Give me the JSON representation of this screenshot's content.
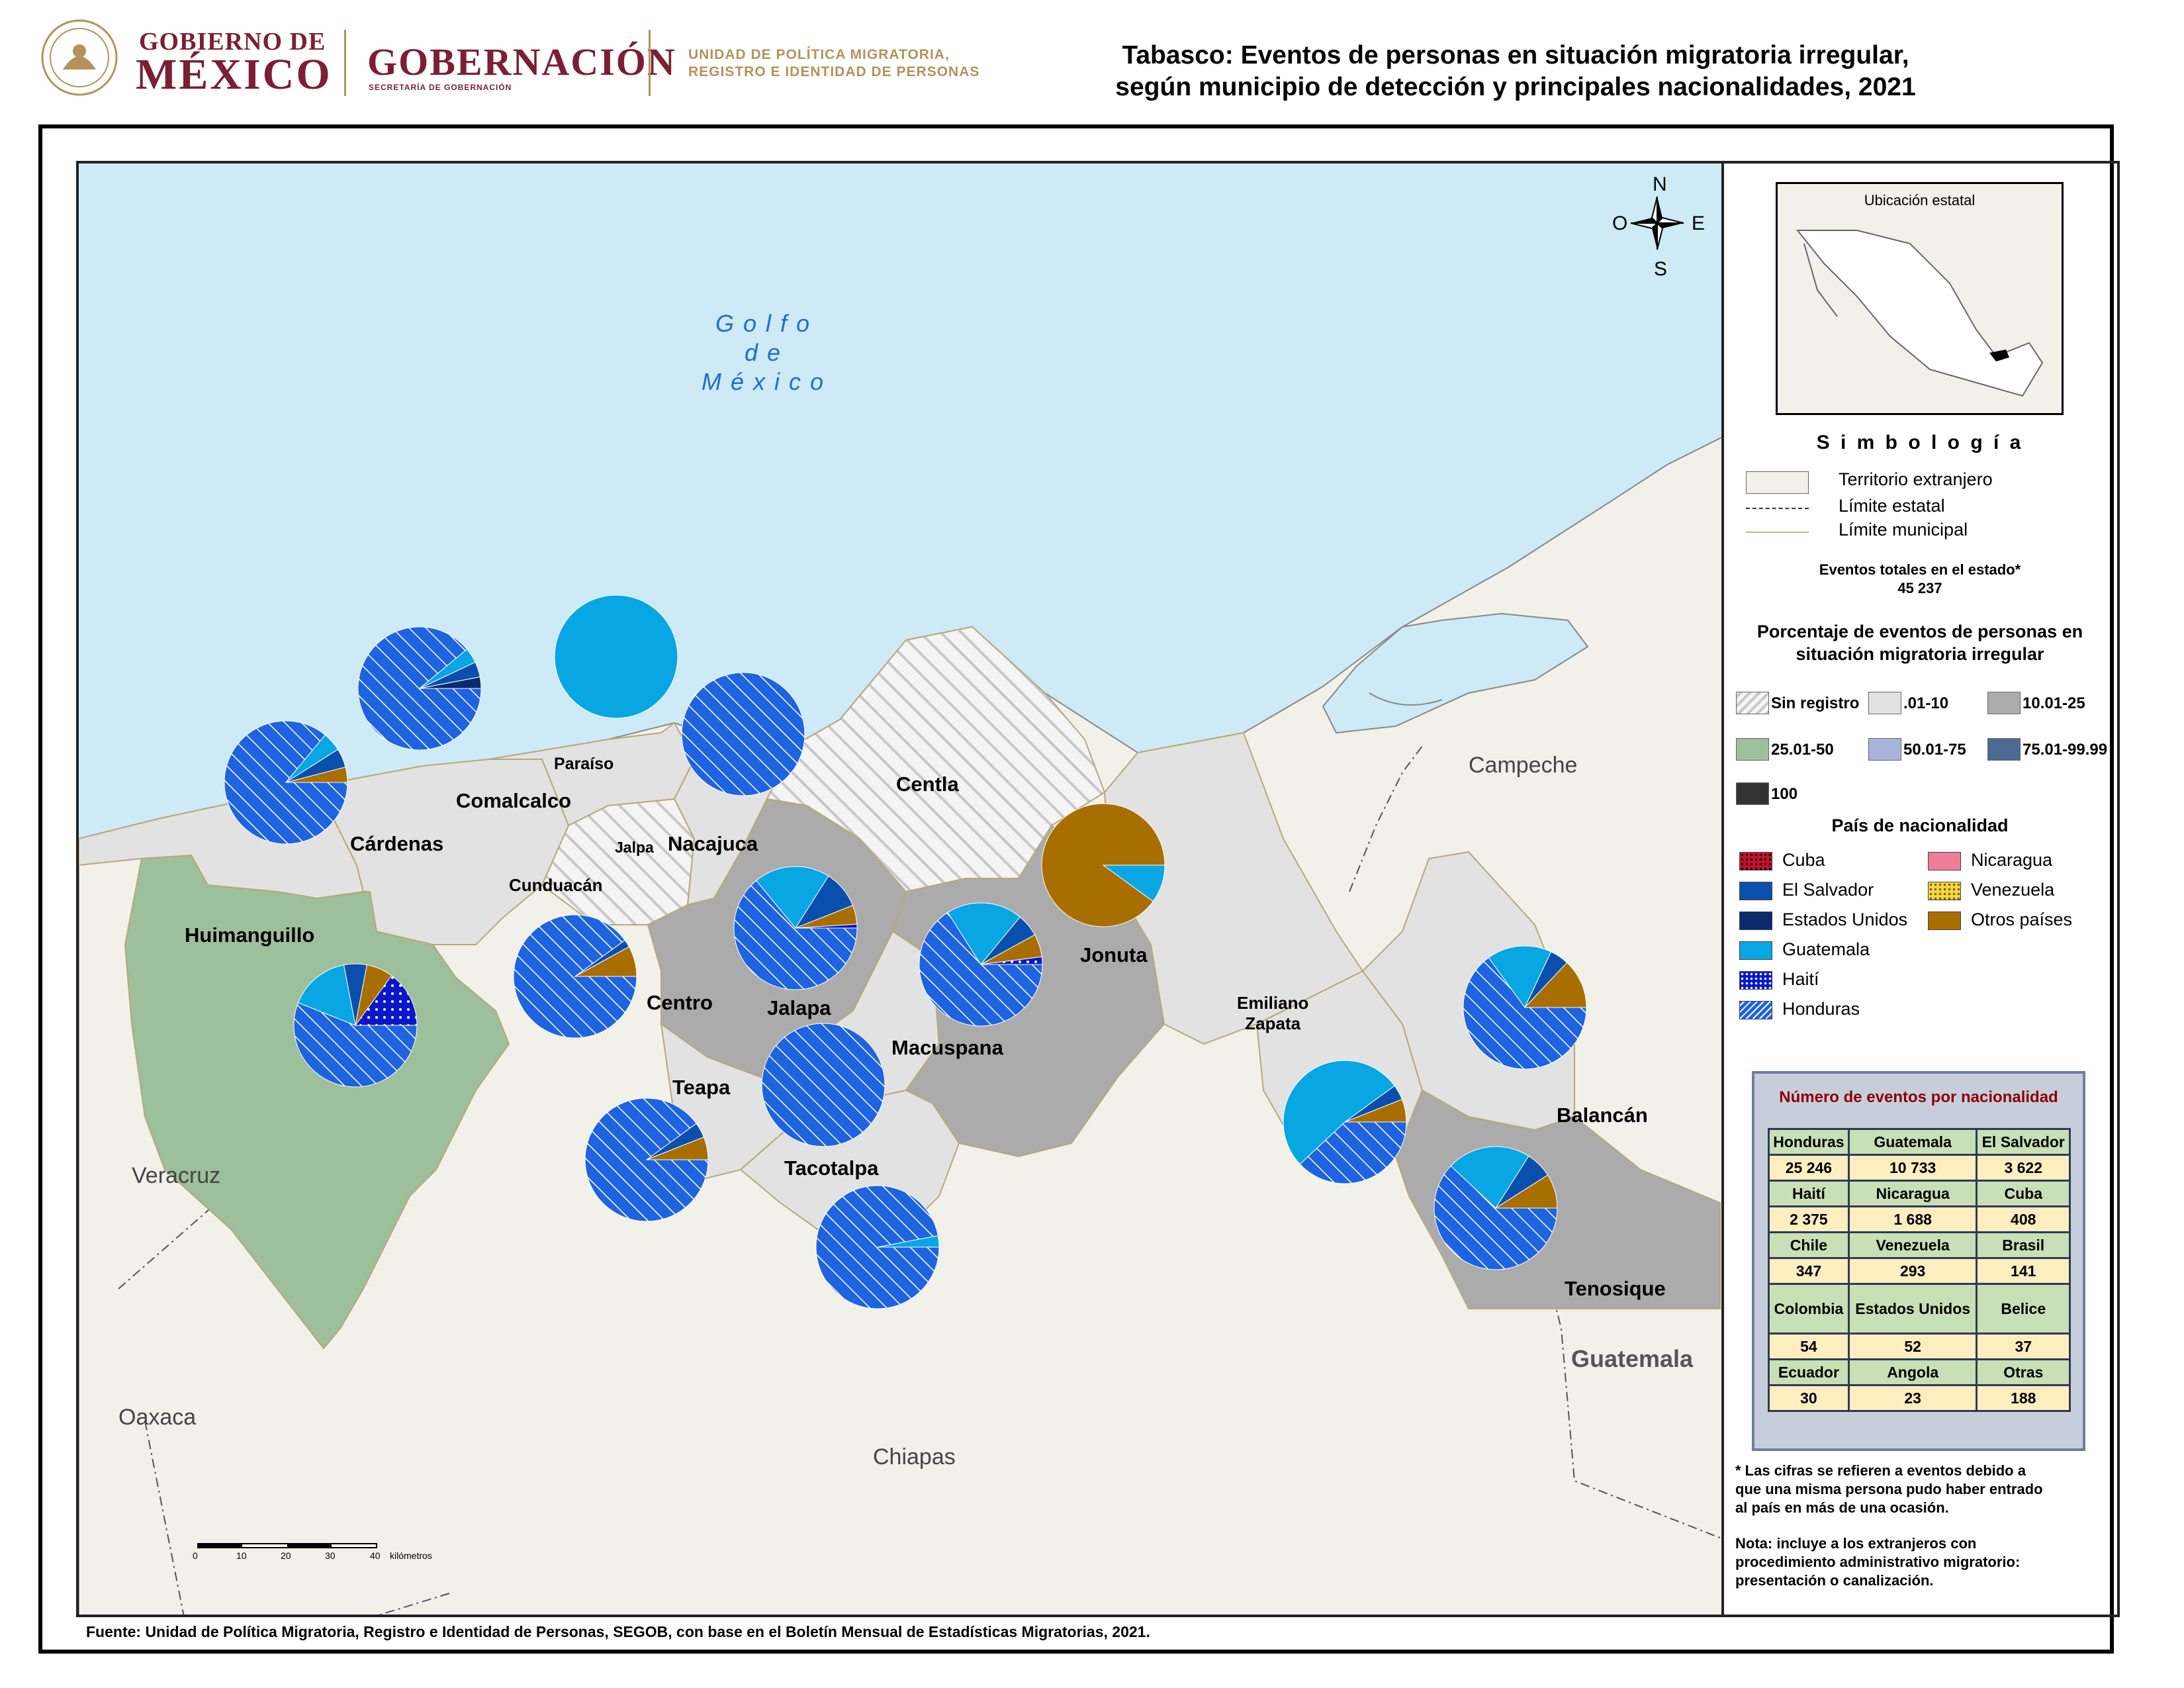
{
  "header": {
    "gov_top": "GOBIERNO DE",
    "gov_main": "MÉXICO",
    "gob_main": "GOBERNACIÓN",
    "gob_sub": "SECRETARÍA DE GOBERNACIÓN",
    "upm_line1": "UNIDAD DE POLÍTICA MIGRATORIA,",
    "upm_line2": "REGISTRO E IDENTIDAD DE PERSONAS"
  },
  "title": {
    "line1": "Tabasco: Eventos de personas en situación migratoria irregular,",
    "line2": "según municipio de detección y principales nacionalidades, 2021"
  },
  "map": {
    "sea_label": [
      "Golfo",
      "de",
      "México"
    ],
    "compass": {
      "n": "N",
      "s": "S",
      "e": "E",
      "o": "O"
    },
    "states": {
      "campeche": "Campeche",
      "veracruz": "Veracruz",
      "oaxaca": "Oaxaca",
      "chiapas": "Chiapas",
      "guatemala": "Guatemala"
    },
    "municipalities": {
      "paraiso": "Paraíso",
      "comalcalco": "Comalcalco",
      "cardenas": "Cárdenas",
      "huimanguillo": "Huimanguillo",
      "jalpa": "Jalpa",
      "nacajuca": "Nacajuca",
      "cunduacan": "Cunduacán",
      "centla": "Centla",
      "centro": "Centro",
      "jalapa": "Jalapa",
      "macuspana": "Macuspana",
      "teapa": "Teapa",
      "tacotalpa": "Tacotalpa",
      "jonuta": "Jonuta",
      "emiliano_zapata_1": "Emiliano",
      "emiliano_zapata_2": "Zapata",
      "balancan": "Balancán",
      "tenosique": "Tenosique"
    },
    "scale": {
      "ticks": [
        "0",
        "10",
        "20",
        "30",
        "40"
      ],
      "unit": "kilómetros"
    },
    "colors": {
      "sea": "#cdeaf6",
      "foreign": "#f1f1ea",
      "class_01_10": "#e2e2e2",
      "class_10_25": "#ababab",
      "class_25_50": "#9dbf9b",
      "honduras": "#1e63e0",
      "guatemala": "#08a6e3",
      "el_salvador": "#0b4fae",
      "estados_unidos": "#0c2a6e",
      "haiti": "#0a18c9",
      "otros": "#a86e00",
      "cuba": "#c8102e",
      "nicaragua": "#f07d9a",
      "venezuela": "#f5d742"
    }
  },
  "legend": {
    "inset_title": "Ubicación estatal",
    "simbologia": "S i m b o l o g í a",
    "items": {
      "foreign": "Territorio extranjero",
      "state_limit": "Límite estatal",
      "muni_limit": "Límite municipal"
    },
    "total_label": "Eventos totales en el estado*",
    "total_value": "45 237",
    "pct_title_1": "Porcentaje de eventos de personas en",
    "pct_title_2": "situación migratoria irregular",
    "classes": [
      "Sin registro",
      ".01-10",
      "10.01-25",
      "25.01-50",
      "50.01-75",
      "75.01-99.99",
      "100"
    ],
    "nat_title": "País de nacionalidad",
    "nationalities": [
      "Cuba",
      "Nicaragua",
      "El Salvador",
      "Venezuela",
      "Estados Unidos",
      "Otros países",
      "Guatemala",
      "Haití",
      "Honduras"
    ]
  },
  "table": {
    "title": "Número de eventos por nacionalidad",
    "rows": [
      {
        "names": [
          "Honduras",
          "Guatemala",
          "El Salvador"
        ],
        "values": [
          "25 246",
          "10 733",
          "3 622"
        ]
      },
      {
        "names": [
          "Haití",
          "Nicaragua",
          "Cuba"
        ],
        "values": [
          "2 375",
          "1 688",
          "408"
        ]
      },
      {
        "names": [
          "Chile",
          "Venezuela",
          "Brasil"
        ],
        "values": [
          "347",
          "293",
          "141"
        ]
      },
      {
        "names": [
          "Colombia",
          "Estados Unidos",
          "Belice"
        ],
        "values": [
          "54",
          "52",
          "37"
        ]
      },
      {
        "names": [
          "Ecuador",
          "Angola",
          "Otras"
        ],
        "values": [
          "30",
          "23",
          "188"
        ]
      }
    ]
  },
  "footnote": {
    "line1": "* Las cifras se refieren a eventos debido a",
    "line2": "que una misma persona pudo haber entrado",
    "line3": "al país en más de una ocasión.",
    "note1": "Nota: incluye a los extranjeros con",
    "note2": "procedimiento administrativo migratorio:",
    "note3": "presentación o canalización."
  },
  "source": "Fuente: Unidad de Política Migratoria, Registro e Identidad de Personas, SEGOB, con base en el Boletín Mensual de Estadísticas Migratorias, 2021.",
  "pies": [
    {
      "municipality": "Cárdenas",
      "shares": {
        "honduras": 0.86,
        "guatemala": 0.05,
        "el_salvador": 0.05,
        "otros": 0.04
      }
    },
    {
      "municipality": "Comalcalco",
      "shares": {
        "honduras": 0.89,
        "guatemala": 0.04,
        "el_salvador": 0.04,
        "estados_unidos": 0.03
      }
    },
    {
      "municipality": "Paraíso",
      "shares": {
        "guatemala": 1.0
      }
    },
    {
      "municipality": "Nacajuca",
      "shares": {
        "honduras": 1.0
      }
    },
    {
      "municipality": "Cunduacán",
      "shares": {
        "honduras": 0.9,
        "el_salvador": 0.02,
        "otros": 0.08
      }
    },
    {
      "municipality": "Huimanguillo",
      "shares": {
        "honduras": 0.56,
        "guatemala": 0.16,
        "el_salvador": 0.06,
        "otros": 0.07,
        "haiti": 0.15
      }
    },
    {
      "municipality": "Centro",
      "shares": {
        "honduras": 0.64,
        "guatemala": 0.2,
        "el_salvador": 0.1,
        "otros": 0.05,
        "haiti": 0.01
      }
    },
    {
      "municipality": "Macuspana",
      "shares": {
        "honduras": 0.66,
        "guatemala": 0.2,
        "el_salvador": 0.06,
        "otros": 0.06,
        "haiti": 0.02
      }
    },
    {
      "municipality": "Jonuta",
      "shares": {
        "otros": 0.9,
        "guatemala": 0.1
      }
    },
    {
      "municipality": "Jalapa",
      "shares": {
        "honduras": 1.0
      }
    },
    {
      "municipality": "Teapa",
      "shares": {
        "honduras": 0.9,
        "el_salvador": 0.04,
        "otros": 0.06
      }
    },
    {
      "municipality": "Tacotalpa",
      "shares": {
        "honduras": 0.97,
        "guatemala": 0.03
      }
    },
    {
      "municipality": "Emiliano Zapata",
      "shares": {
        "guatemala": 0.52,
        "honduras": 0.38,
        "el_salvador": 0.04,
        "otros": 0.06
      }
    },
    {
      "municipality": "Balancán",
      "shares": {
        "honduras": 0.65,
        "guatemala": 0.17,
        "el_salvador": 0.05,
        "otros": 0.13
      }
    },
    {
      "municipality": "Tenosique",
      "shares": {
        "honduras": 0.62,
        "guatemala": 0.22,
        "el_salvador": 0.07,
        "otros": 0.09
      }
    }
  ]
}
